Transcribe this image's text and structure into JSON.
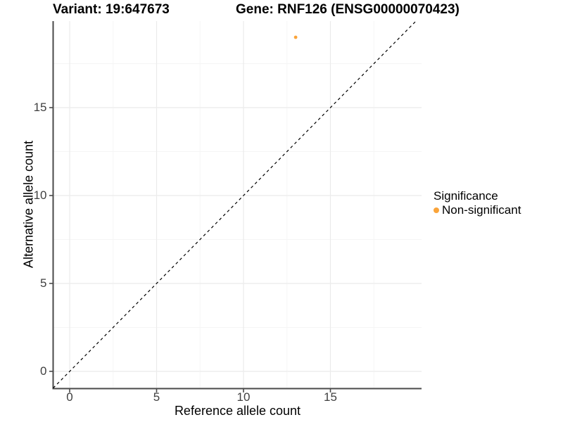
{
  "page": {
    "background": "#FFFFFF"
  },
  "chart_data": {
    "type": "scatter",
    "title_left": "Variant: 19:647673",
    "title_right": "Gene: RNF126 (ENSG00000070423)",
    "xlabel": "Reference allele count",
    "ylabel": "Alternative allele count",
    "xlim": [
      -0.95,
      20.2
    ],
    "ylim": [
      -0.95,
      19.9
    ],
    "x_major_ticks": [
      0,
      5,
      10,
      15
    ],
    "y_major_ticks": [
      0,
      5,
      10,
      15
    ],
    "x_minor_ticks": [
      2.5,
      7.5,
      12.5,
      17.5
    ],
    "y_minor_ticks": [
      2.5,
      7.5,
      12.5,
      17.5
    ],
    "grid": "major+minor",
    "legend_position": "right",
    "identity_line": {
      "slope": 1,
      "intercept": 0,
      "style": "dashed",
      "color": "#000000"
    },
    "series": [
      {
        "name": "Non-significant",
        "color": "#FAA43A",
        "point_radius": 2.4,
        "points": [
          [
            13,
            19
          ]
        ]
      }
    ],
    "legend": {
      "title": "Significance",
      "entries": [
        {
          "label": "Non-significant",
          "color": "#FAA43A"
        }
      ]
    },
    "colors": {
      "grid_major": "#EBEBEB",
      "grid_minor": "#F5F5F5",
      "axis_line": "#4A4A4A",
      "tick_mark": "#4A4A4A",
      "tick_label": "#404040",
      "title": "#000000"
    }
  }
}
